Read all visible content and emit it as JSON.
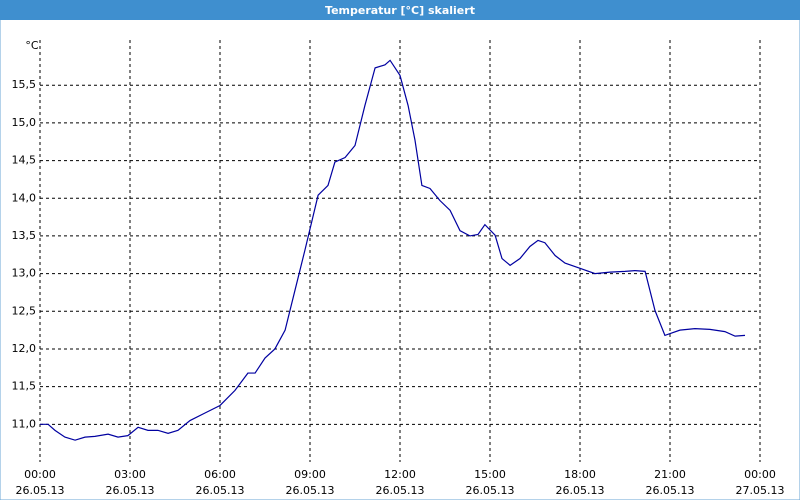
{
  "chart_data": {
    "type": "line",
    "title": "Temperatur [°C] skaliert",
    "y_unit": "°C",
    "x": [
      0,
      0.27,
      0.5,
      0.83,
      1.17,
      1.5,
      1.83,
      2.27,
      2.6,
      2.93,
      3.27,
      3.6,
      3.93,
      4.27,
      4.6,
      5,
      5.5,
      6,
      6.5,
      6.93,
      7.17,
      7.5,
      7.83,
      8.17,
      8.5,
      8.83,
      9.27,
      9.6,
      9.83,
      10.17,
      10.5,
      10.83,
      11.17,
      11.5,
      11.67,
      12,
      12.27,
      12.5,
      12.73,
      13,
      13.33,
      13.67,
      14,
      14.33,
      14.6,
      14.83,
      15.17,
      15.4,
      15.67,
      16,
      16.33,
      16.6,
      16.83,
      17.17,
      17.5,
      18,
      18.5,
      19,
      19.5,
      19.83,
      20.17,
      20.5,
      20.83,
      21.33,
      21.83,
      22.33,
      22.83,
      23.17,
      23.5
    ],
    "series": [
      {
        "name": "Temperatur",
        "color": "#0000a0",
        "values": [
          11.0,
          11.0,
          10.92,
          10.83,
          10.79,
          10.83,
          10.84,
          10.87,
          10.83,
          10.85,
          10.96,
          10.92,
          10.92,
          10.88,
          10.92,
          11.05,
          11.15,
          11.25,
          11.45,
          11.68,
          11.68,
          11.88,
          12.0,
          12.25,
          12.78,
          13.31,
          14.04,
          14.17,
          14.48,
          14.54,
          14.7,
          15.23,
          15.73,
          15.77,
          15.83,
          15.63,
          15.23,
          14.77,
          14.17,
          14.13,
          13.97,
          13.84,
          13.57,
          13.5,
          13.52,
          13.65,
          13.51,
          13.2,
          13.11,
          13.2,
          13.36,
          13.44,
          13.41,
          13.24,
          13.14,
          13.07,
          13.0,
          13.02,
          13.03,
          13.04,
          13.03,
          12.51,
          12.18,
          12.25,
          12.27,
          12.26,
          12.23,
          12.17,
          12.18
        ]
      }
    ],
    "xlim": [
      0,
      24
    ],
    "xticks": [
      {
        "value": 0,
        "label": "00:00"
      },
      {
        "value": 3,
        "label": "03:00"
      },
      {
        "value": 6,
        "label": "06:00"
      },
      {
        "value": 9,
        "label": "09:00"
      },
      {
        "value": 12,
        "label": "12:00"
      },
      {
        "value": 15,
        "label": "15:00"
      },
      {
        "value": 18,
        "label": "18:00"
      },
      {
        "value": 21,
        "label": "21:00"
      },
      {
        "value": 24,
        "label": "00:00"
      }
    ],
    "xtick_dates": [
      "26.05.13",
      "26.05.13",
      "26.05.13",
      "26.05.13",
      "26.05.13",
      "26.05.13",
      "26.05.13",
      "26.05.13",
      "27.05.13"
    ],
    "ylim": [
      10.5,
      16.1
    ],
    "yticks": [
      {
        "value": 11.0,
        "label": "11,0"
      },
      {
        "value": 11.5,
        "label": "11,5"
      },
      {
        "value": 12.0,
        "label": "12,0"
      },
      {
        "value": 12.5,
        "label": "12,5"
      },
      {
        "value": 13.0,
        "label": "13,0"
      },
      {
        "value": 13.5,
        "label": "13,5"
      },
      {
        "value": 14.0,
        "label": "14,0"
      },
      {
        "value": 14.5,
        "label": "14,5"
      },
      {
        "value": 15.0,
        "label": "15,0"
      },
      {
        "value": 15.5,
        "label": "15,5"
      }
    ],
    "grid": true
  }
}
